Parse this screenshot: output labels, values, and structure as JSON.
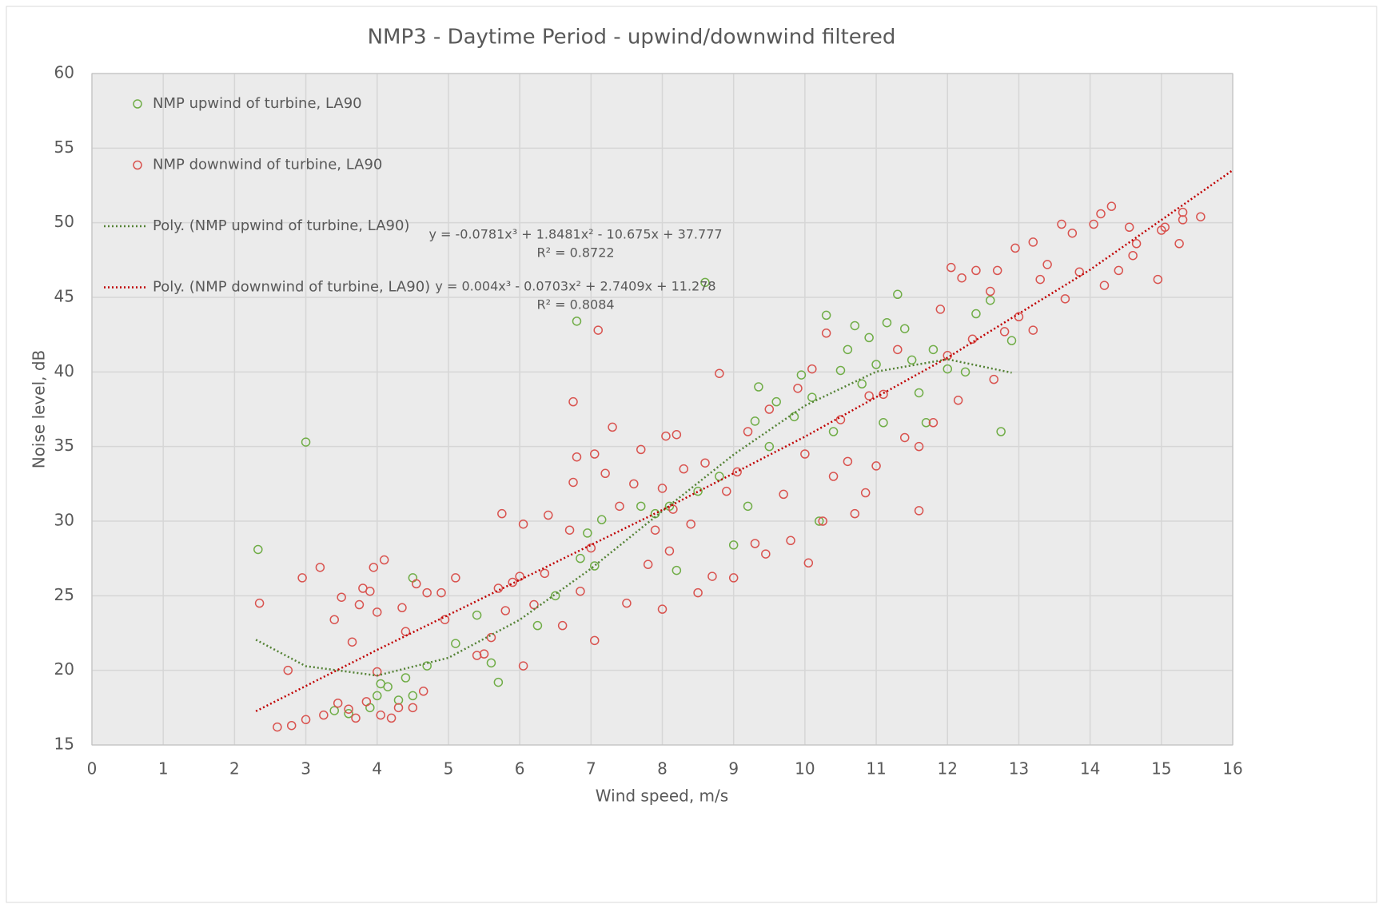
{
  "chart_data": {
    "type": "scatter",
    "title": "NMP3 - Daytime Period - upwind/downwind filtered",
    "x_label": "Wind speed, m/s",
    "y_label": "Noise level, dB",
    "xlim": [
      0,
      16
    ],
    "xticks": [
      0,
      1,
      2,
      3,
      4,
      5,
      6,
      7,
      8,
      9,
      10,
      11,
      12,
      13,
      14,
      15,
      16
    ],
    "ylim": [
      15,
      60
    ],
    "yticks": [
      15,
      20,
      25,
      30,
      35,
      40,
      45,
      50,
      55,
      60
    ],
    "grid": true,
    "legend": "top-left",
    "series": [
      {
        "name": "NMP upwind of turbine, LA90",
        "color": "#70ad47",
        "mode": "markers",
        "x": [
          2.33,
          3,
          3.4,
          3.6,
          3.9,
          4,
          4.05,
          4.15,
          4.3,
          4.4,
          4.5,
          4.5,
          4.7,
          5.1,
          5.4,
          5.6,
          5.7,
          6.25,
          6.5,
          6.85,
          6.95,
          7.05,
          7.15,
          6.8,
          7.7,
          7.9,
          8.1,
          8.2,
          8.5,
          8.6,
          8.8,
          9,
          9.2,
          9.3,
          9.35,
          9.5,
          9.6,
          9.85,
          9.95,
          10.1,
          10.2,
          10.3,
          10.4,
          10.5,
          10.6,
          10.7,
          10.8,
          10.9,
          11,
          11.1,
          11.15,
          11.3,
          11.4,
          11.5,
          11.6,
          11.7,
          11.8,
          12,
          12.25,
          12.4,
          12.6,
          12.75,
          12.9
        ],
        "values": [
          28.1,
          35.3,
          17.3,
          17.1,
          17.5,
          18.3,
          19.1,
          18.9,
          18,
          19.5,
          26.2,
          18.3,
          20.3,
          21.8,
          23.7,
          20.5,
          19.2,
          23,
          25,
          27.5,
          29.2,
          27,
          30.1,
          43.4,
          31,
          30.5,
          31,
          26.7,
          32,
          46,
          33,
          28.4,
          31,
          36.7,
          39,
          35,
          38,
          37,
          39.8,
          38.3,
          30,
          43.8,
          36,
          40.1,
          41.5,
          43.1,
          39.2,
          42.3,
          40.5,
          36.6,
          43.3,
          45.2,
          42.9,
          40.8,
          38.6,
          36.6,
          41.5,
          40.2,
          40,
          43.9,
          44.8,
          36,
          42.1
        ]
      },
      {
        "name": "NMP downwind of turbine, LA90",
        "color": "#d9534f",
        "mode": "markers",
        "x": [
          2.35,
          2.6,
          2.75,
          2.8,
          2.95,
          3,
          3.2,
          3.25,
          3.4,
          3.45,
          3.5,
          3.6,
          3.65,
          3.7,
          3.75,
          3.8,
          3.85,
          3.9,
          3.95,
          4,
          4,
          4.05,
          4.1,
          4.2,
          4.3,
          4.35,
          4.4,
          4.5,
          4.55,
          4.65,
          4.7,
          4.9,
          4.95,
          5.1,
          5.4,
          5.5,
          5.6,
          5.7,
          5.75,
          5.8,
          5.9,
          6,
          6.05,
          6.05,
          6.2,
          6.35,
          6.4,
          6.6,
          6.7,
          6.75,
          6.75,
          6.8,
          6.85,
          7,
          7.05,
          7.05,
          7.1,
          7.2,
          7.3,
          7.4,
          7.5,
          7.6,
          7.7,
          7.8,
          7.9,
          8,
          8,
          8.05,
          8.1,
          8.15,
          8.2,
          8.3,
          8.4,
          8.5,
          8.6,
          8.7,
          8.8,
          8.9,
          9,
          9.05,
          9.2,
          9.3,
          9.45,
          9.5,
          9.7,
          9.8,
          9.9,
          10,
          10.05,
          10.1,
          10.25,
          10.3,
          10.4,
          10.5,
          10.6,
          10.7,
          10.85,
          10.9,
          11,
          11.1,
          11.3,
          11.4,
          11.6,
          11.6,
          11.8,
          11.9,
          12,
          12.05,
          12.15,
          12.2,
          12.35,
          12.4,
          12.6,
          12.65,
          12.7,
          12.8,
          12.95,
          13,
          13.2,
          13.2,
          13.3,
          13.4,
          13.6,
          13.65,
          13.75,
          13.85,
          14.05,
          14.15,
          14.2,
          14.3,
          14.4,
          14.55,
          14.6,
          14.65,
          14.95,
          15,
          15.05,
          15.25,
          15.3,
          15.3,
          15.55
        ],
        "values": [
          24.5,
          16.2,
          20,
          16.3,
          26.2,
          16.7,
          26.9,
          17,
          23.4,
          17.8,
          24.9,
          17.4,
          21.9,
          16.8,
          24.4,
          25.5,
          17.9,
          25.3,
          26.9,
          19.9,
          23.9,
          17,
          27.4,
          16.8,
          17.5,
          24.2,
          22.6,
          17.5,
          25.8,
          18.6,
          25.2,
          25.2,
          23.4,
          26.2,
          21,
          21.1,
          22.2,
          25.5,
          30.5,
          24,
          25.9,
          26.3,
          20.3,
          29.8,
          24.4,
          26.5,
          30.4,
          23,
          29.4,
          32.6,
          38,
          34.3,
          25.3,
          28.2,
          34.5,
          22,
          42.8,
          33.2,
          36.3,
          31,
          24.5,
          32.5,
          34.8,
          27.1,
          29.4,
          32.2,
          24.1,
          35.7,
          28,
          30.8,
          35.8,
          33.5,
          29.8,
          25.2,
          33.9,
          26.3,
          39.9,
          32,
          26.2,
          33.3,
          36,
          28.5,
          27.8,
          37.5,
          31.8,
          28.7,
          38.9,
          34.5,
          27.2,
          40.2,
          30,
          42.6,
          33,
          36.8,
          34,
          30.5,
          31.9,
          38.4,
          33.7,
          38.5,
          41.5,
          35.6,
          30.7,
          35,
          36.6,
          44.2,
          41.1,
          47,
          38.1,
          46.3,
          42.2,
          46.8,
          45.4,
          39.5,
          46.8,
          42.7,
          48.3,
          43.7,
          48.7,
          42.8,
          46.2,
          47.2,
          49.9,
          44.9,
          49.3,
          46.7,
          49.9,
          50.6,
          45.8,
          51.1,
          46.8,
          49.7,
          47.8,
          48.6,
          46.2,
          49.5,
          49.7,
          48.6,
          50.2,
          50.7,
          50.4
        ]
      },
      {
        "name": "Poly. (NMP upwind of turbine, LA90)",
        "color": "#548235",
        "mode": "dotted-line",
        "x": [
          2.3,
          3,
          4,
          5,
          6,
          7,
          8,
          9,
          10,
          11,
          12,
          12.9
        ],
        "values": [
          22.05,
          20.28,
          19.65,
          20.84,
          23.39,
          26.82,
          30.67,
          34.46,
          37.74,
          40.02,
          40.85,
          39.95
        ]
      },
      {
        "name": "Poly. (NMP downwind of turbine, LA90)",
        "color": "#c00000",
        "mode": "dotted-line",
        "x": [
          2.3,
          4,
          6,
          8,
          10,
          12,
          14,
          16
        ],
        "values": [
          17.26,
          21.37,
          26.06,
          30.75,
          35.66,
          40.96,
          46.85,
          53.52
        ]
      }
    ],
    "annotations": [
      "y = -0.0781x³ + 1.8481x² - 10.675x + 37.777",
      "R² = 0.8722",
      "y = 0.004x³ - 0.0703x² + 2.7409x + 11.278",
      "R² = 0.8084"
    ]
  }
}
